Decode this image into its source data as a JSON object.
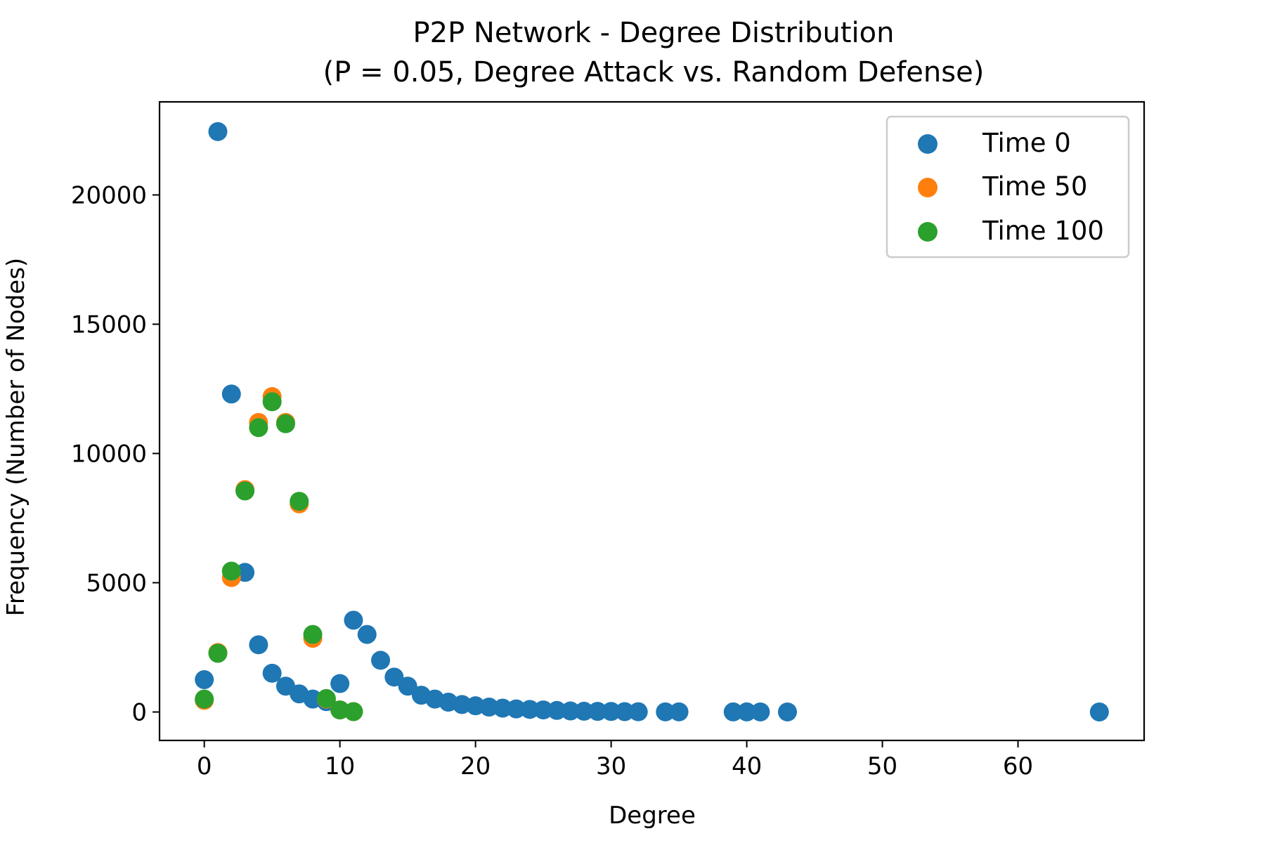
{
  "chart_data": {
    "type": "scatter",
    "title": "P2P Network - Degree Distribution",
    "subtitle": "(P = 0.05, Degree Attack vs. Random Defense)",
    "xlabel": "Degree",
    "ylabel": "Frequency (Number of Nodes)",
    "xlim": [
      -3.3,
      69.3
    ],
    "ylim": [
      -1100,
      23600
    ],
    "xticks": [
      0,
      10,
      20,
      30,
      40,
      50,
      60
    ],
    "yticks": [
      0,
      5000,
      10000,
      15000,
      20000
    ],
    "grid": false,
    "legend_position": "top-right",
    "series": [
      {
        "name": "Time 0",
        "color": "#1f77b4",
        "points": [
          [
            0,
            1250
          ],
          [
            1,
            22450
          ],
          [
            2,
            12300
          ],
          [
            3,
            5400
          ],
          [
            4,
            2600
          ],
          [
            5,
            1500
          ],
          [
            6,
            1000
          ],
          [
            7,
            700
          ],
          [
            8,
            500
          ],
          [
            9,
            400
          ],
          [
            10,
            1100
          ],
          [
            11,
            3550
          ],
          [
            12,
            3000
          ],
          [
            13,
            2000
          ],
          [
            14,
            1350
          ],
          [
            15,
            1000
          ],
          [
            16,
            650
          ],
          [
            17,
            500
          ],
          [
            18,
            380
          ],
          [
            19,
            290
          ],
          [
            20,
            240
          ],
          [
            21,
            190
          ],
          [
            22,
            150
          ],
          [
            23,
            120
          ],
          [
            24,
            100
          ],
          [
            25,
            80
          ],
          [
            26,
            60
          ],
          [
            27,
            40
          ],
          [
            28,
            30
          ],
          [
            29,
            25
          ],
          [
            30,
            20
          ],
          [
            31,
            15
          ],
          [
            32,
            10
          ],
          [
            34,
            5
          ],
          [
            35,
            5
          ],
          [
            39,
            3
          ],
          [
            40,
            3
          ],
          [
            41,
            2
          ],
          [
            43,
            2
          ],
          [
            66,
            1
          ]
        ]
      },
      {
        "name": "Time 50",
        "color": "#ff7f0e",
        "points": [
          [
            0,
            450
          ],
          [
            1,
            2300
          ],
          [
            2,
            5200
          ],
          [
            3,
            8600
          ],
          [
            4,
            11200
          ],
          [
            5,
            12200
          ],
          [
            6,
            11200
          ],
          [
            7,
            8050
          ],
          [
            8,
            2850
          ],
          [
            9,
            500
          ],
          [
            10,
            80
          ],
          [
            11,
            15
          ]
        ]
      },
      {
        "name": "Time 100",
        "color": "#2ca02c",
        "points": [
          [
            0,
            500
          ],
          [
            1,
            2270
          ],
          [
            2,
            5450
          ],
          [
            3,
            8550
          ],
          [
            4,
            11000
          ],
          [
            5,
            12000
          ],
          [
            6,
            11150
          ],
          [
            7,
            8150
          ],
          [
            8,
            3000
          ],
          [
            9,
            520
          ],
          [
            10,
            80
          ],
          [
            11,
            15
          ]
        ]
      }
    ]
  }
}
